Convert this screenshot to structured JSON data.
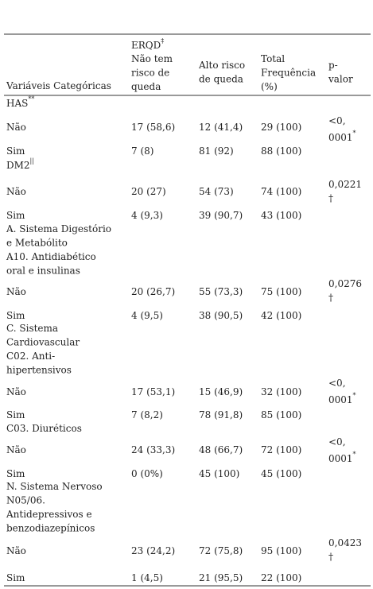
{
  "header": {
    "variable": "Variáveis Categóricas",
    "erqd": {
      "text": "ERQD",
      "sup": "‡"
    },
    "no_risk": [
      "Não tem",
      "risco de",
      "queda"
    ],
    "high_risk": [
      "Alto risco",
      "de queda"
    ],
    "total": [
      "Total",
      "Frequência",
      "(%)"
    ],
    "p": [
      "p-",
      "valor"
    ]
  },
  "groups": [
    {
      "title": {
        "lines": [
          "HAS"
        ],
        "sup": "**"
      },
      "p": {
        "lines": [
          "<0,",
          "0001"
        ],
        "sup": "*"
      },
      "rows": [
        {
          "label": "Não",
          "no_risk": "17 (58,6)",
          "high_risk": "12 (41,4)",
          "total": "29 (100)"
        },
        {
          "label": "Sim",
          "no_risk": "7 (8)",
          "high_risk": "81 (92)",
          "total": "88 (100)"
        }
      ]
    },
    {
      "title": {
        "lines": [
          "DM2"
        ],
        "sup": "||"
      },
      "p": {
        "lines": [
          "0,0221",
          "†"
        ]
      },
      "rows": [
        {
          "label": "Não",
          "no_risk": "20 (27)",
          "high_risk": "54 (73)",
          "total": "74 (100)"
        },
        {
          "label": "Sim",
          "no_risk": "4 (9,3)",
          "high_risk": "39 (90,7)",
          "total": "43 (100)"
        }
      ]
    },
    {
      "title": {
        "lines": [
          "A. Sistema Digestório",
          "e Metabólito",
          "A10. Antidiabético",
          "oral e insulinas"
        ]
      },
      "p": {
        "lines": [
          "0,0276",
          "†"
        ]
      },
      "rows": [
        {
          "label": "Não",
          "no_risk": "20 (26,7)",
          "high_risk": "55 (73,3)",
          "total": "75 (100)"
        },
        {
          "label": "Sim",
          "no_risk": "4 (9,5)",
          "high_risk": "38 (90,5)",
          "total": "42 (100)"
        }
      ]
    },
    {
      "title": {
        "lines": [
          "C. Sistema",
          "Cardiovascular",
          "C02. Anti-",
          "hipertensivos"
        ]
      },
      "p": {
        "lines": [
          "<0,",
          "0001"
        ],
        "sup": "*"
      },
      "rows": [
        {
          "label": "Não",
          "no_risk": "17 (53,1)",
          "high_risk": "15 (46,9)",
          "total": "32 (100)"
        },
        {
          "label": "Sim",
          "no_risk": "7 (8,2)",
          "high_risk": "78 (91,8)",
          "total": "85 (100)"
        }
      ]
    },
    {
      "title": {
        "lines": [
          "C03. Diuréticos"
        ]
      },
      "p": {
        "lines": [
          "<0,",
          "0001"
        ],
        "sup": "*"
      },
      "rows": [
        {
          "label": "Não",
          "no_risk": "24 (33,3)",
          "high_risk": "48 (66,7)",
          "total": "72 (100)"
        },
        {
          "label": "Sim",
          "no_risk": "0 (0%)",
          "high_risk": "45 (100)",
          "total": "45 (100)"
        }
      ]
    },
    {
      "title": {
        "lines": [
          "N. Sistema Nervoso",
          "N05/06.",
          "Antidepressivos e",
          "benzodiazepínicos"
        ]
      },
      "p": {
        "lines": [
          "0,0423",
          "†"
        ]
      },
      "rows": [
        {
          "label": "Não",
          "no_risk": "23 (24,2)",
          "high_risk": "72 (75,8)",
          "total": "95 (100)"
        },
        {
          "label": "Sim",
          "no_risk": "1 (4,5)",
          "high_risk": "21 (95,5)",
          "total": "22 (100)"
        }
      ]
    }
  ]
}
